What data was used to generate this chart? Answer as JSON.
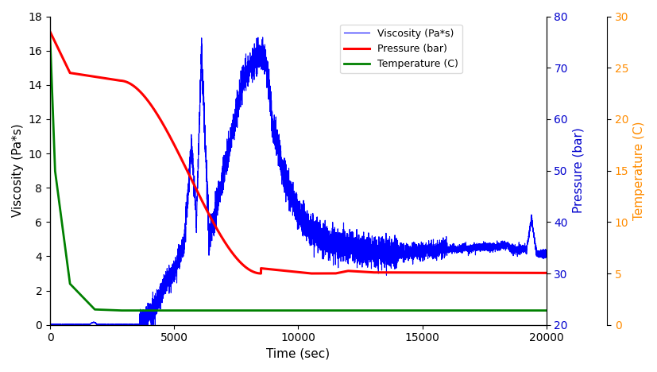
{
  "title": "",
  "xlabel": "Time (sec)",
  "ylabel_left": "Viscosity (Pa*s)",
  "ylabel_right1": "Pressure (bar)",
  "ylabel_right2": "Temperature (C)",
  "xlim": [
    0,
    20000
  ],
  "ylim_viscosity": [
    0,
    18
  ],
  "ylim_pressure": [
    20,
    80
  ],
  "ylim_temperature": [
    0,
    30
  ],
  "yticks_viscosity": [
    0,
    2,
    4,
    6,
    8,
    10,
    12,
    14,
    16,
    18
  ],
  "yticks_pressure": [
    20,
    30,
    40,
    50,
    60,
    70,
    80
  ],
  "yticks_temperature": [
    0,
    5,
    10,
    15,
    20,
    25,
    30
  ],
  "xticks": [
    0,
    5000,
    10000,
    15000,
    20000
  ],
  "color_viscosity": "#0000FF",
  "color_pressure": "#FF0000",
  "color_temperature": "#008000",
  "color_pressure_axis": "#0000CD",
  "color_temperature_axis": "#FF8C00",
  "legend_labels": [
    "Viscosity (Pa*s)",
    "Pressure (bar)",
    "Temperature (C)"
  ],
  "background_color": "#FFFFFF",
  "linewidth_viscosity": 0.8,
  "linewidth_pressure": 2.2,
  "linewidth_temperature": 2.0
}
